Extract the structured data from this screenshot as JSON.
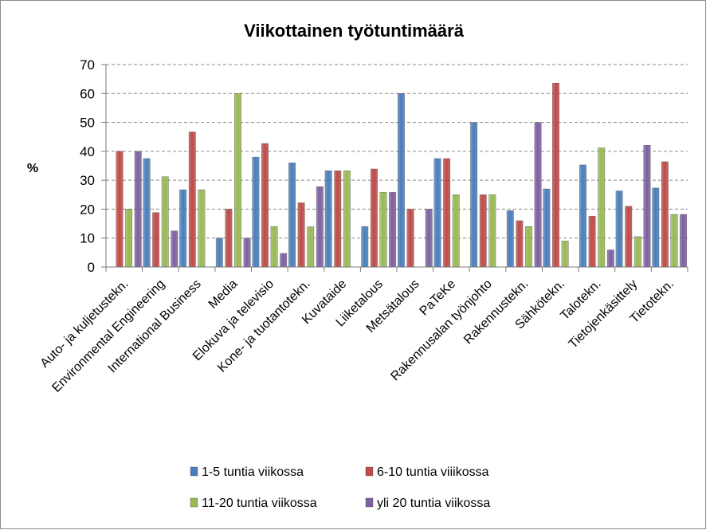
{
  "chart_data": {
    "type": "bar",
    "title": "Viikottainen työtuntimäärä",
    "xlabel": "",
    "ylabel": "%",
    "ylim": [
      0,
      70
    ],
    "yticks": [
      0,
      10,
      20,
      30,
      40,
      50,
      60,
      70
    ],
    "grid": true,
    "legend_position": "bottom",
    "categories": [
      "Auto- ja kuljetustekn.",
      "Environmental Engineering",
      "International Business",
      "Media",
      "Elokuva ja televisio",
      "Kone- ja tuotantotekn.",
      "Kuvataide",
      "Liiketalous",
      "Metsätalous",
      "PaTeKe",
      "Rakennusalan työnjohto",
      "Rakennustekn.",
      "Sähkötekn.",
      "Talotekn.",
      "Tietojenkäsittely",
      "Tietotekn."
    ],
    "series": [
      {
        "name": "1-5 tuntia viikossa",
        "color": "#4a7ebb",
        "values": [
          0,
          37.5,
          26.7,
          10,
          38,
          36,
          33.3,
          14,
          60,
          37.5,
          50,
          19.5,
          27,
          35.3,
          26.3,
          27.3
        ]
      },
      {
        "name": "6-10 tuntia viiikossa",
        "color": "#be4b48",
        "values": [
          40,
          18.8,
          46.7,
          20,
          42.7,
          22.2,
          33.3,
          33.9,
          20,
          37.5,
          25,
          16,
          63.6,
          17.6,
          21,
          36.4
        ]
      },
      {
        "name": "11-20 tuntia viikossa",
        "color": "#98b954",
        "values": [
          20,
          31.2,
          26.7,
          60,
          14,
          13.9,
          33.3,
          25.8,
          0,
          25,
          25,
          14,
          9,
          41.2,
          10.5,
          18.2
        ]
      },
      {
        "name": "yli 20 tuntia viikossa",
        "color": "#7d60a0",
        "values": [
          40,
          12.5,
          0,
          10,
          4.7,
          27.8,
          0,
          25.8,
          20,
          0,
          0,
          50,
          0,
          5.9,
          42.1,
          18.2
        ]
      }
    ]
  }
}
